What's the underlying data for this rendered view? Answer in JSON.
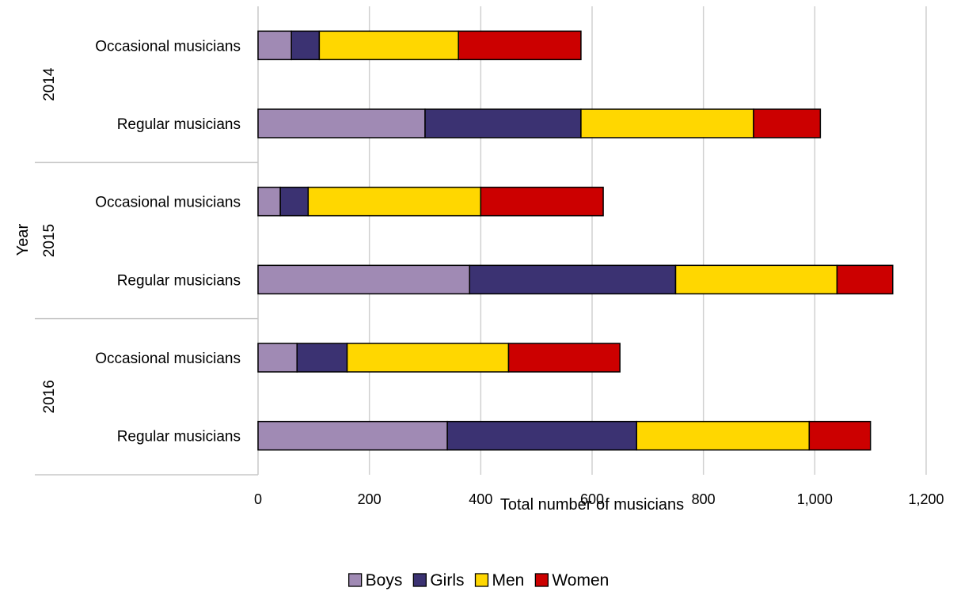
{
  "chart_data": {
    "type": "bar",
    "orientation": "horizontal",
    "stacked": true,
    "title": "",
    "xlabel": "Total number of musicians",
    "ylabel": "Year",
    "xlim": [
      0,
      1200
    ],
    "x_ticks": [
      0,
      200,
      400,
      600,
      800,
      1000,
      1200
    ],
    "x_tick_labels": [
      "0",
      "200",
      "400",
      "600",
      "800",
      "1,000",
      "1,200"
    ],
    "grid": true,
    "legend_position": "bottom",
    "groups": [
      {
        "label": "2014",
        "categories": [
          "Occasional musicians",
          "Regular musicians"
        ]
      },
      {
        "label": "2015",
        "categories": [
          "Occasional musicians",
          "Regular musicians"
        ]
      },
      {
        "label": "2016",
        "categories": [
          "Occasional musicians",
          "Regular musicians"
        ]
      }
    ],
    "series": [
      {
        "name": "Boys",
        "color": "#a08ab4",
        "values": [
          60,
          300,
          40,
          380,
          70,
          340
        ]
      },
      {
        "name": "Girls",
        "color": "#3b3272",
        "values": [
          50,
          280,
          50,
          370,
          90,
          340
        ]
      },
      {
        "name": "Men",
        "color": "#ffd700",
        "values": [
          250,
          310,
          310,
          290,
          290,
          310
        ]
      },
      {
        "name": "Women",
        "color": "#cc0000",
        "values": [
          220,
          120,
          220,
          100,
          200,
          110
        ]
      }
    ]
  }
}
